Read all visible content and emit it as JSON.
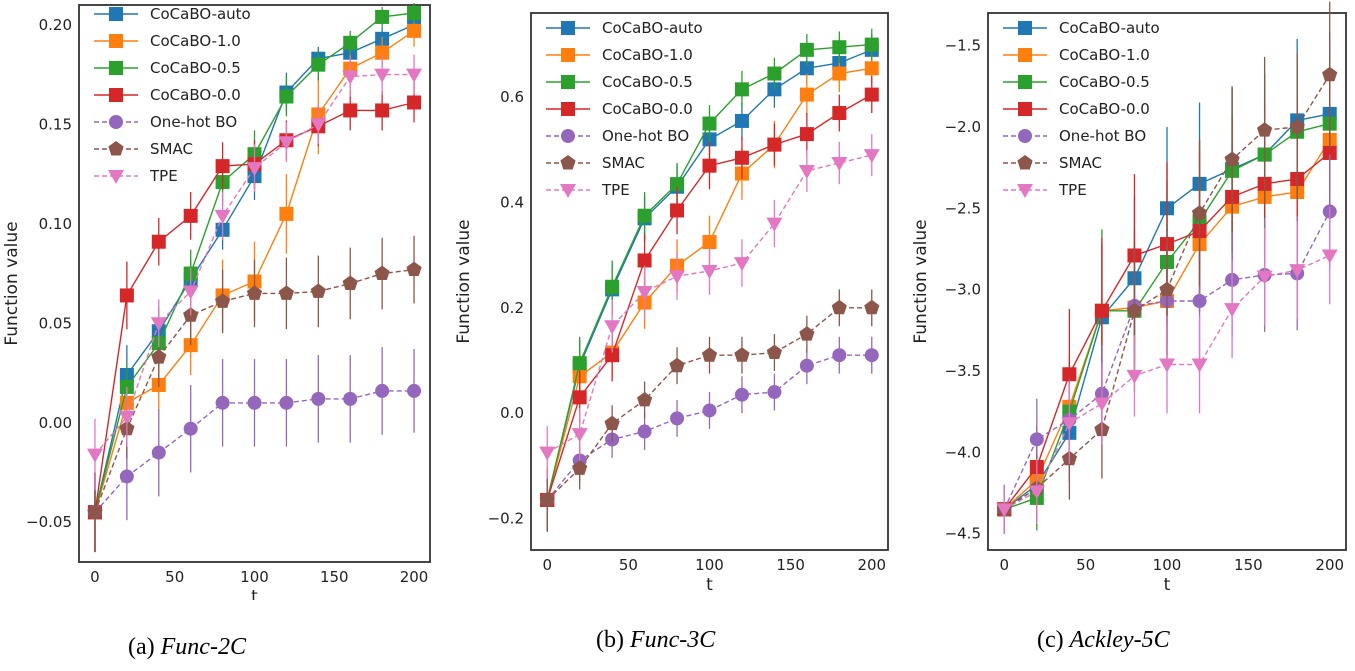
{
  "series_styles": [
    {
      "name": "CoCaBO-auto",
      "color": "#1f77b4",
      "marker": "square",
      "dash": false
    },
    {
      "name": "CoCaBO-1.0",
      "color": "#ff7f0e",
      "marker": "square",
      "dash": false
    },
    {
      "name": "CoCaBO-0.5",
      "color": "#2ca02c",
      "marker": "square",
      "dash": false
    },
    {
      "name": "CoCaBO-0.0",
      "color": "#d62728",
      "marker": "square",
      "dash": false
    },
    {
      "name": "One-hot BO",
      "color": "#9467bd",
      "marker": "circle",
      "dash": true
    },
    {
      "name": "SMAC",
      "color": "#8c564b",
      "marker": "pentagon",
      "dash": true
    },
    {
      "name": "TPE",
      "color": "#e377c2",
      "marker": "triangle-down",
      "dash": true
    }
  ],
  "chart_data": [
    {
      "type": "line",
      "caption_prefix": "(a) ",
      "caption_name": "Func-2C",
      "xlabel": "t",
      "ylabel": "Function value",
      "xlim": [
        -10,
        210
      ],
      "ylim": [
        -0.07,
        0.21
      ],
      "xticks": [
        0,
        50,
        100,
        150,
        200
      ],
      "yticks": [
        -0.05,
        0.0,
        0.05,
        0.1,
        0.15,
        0.2
      ],
      "ytick_labels": [
        "−0.05",
        "0.00",
        "0.05",
        "0.10",
        "0.15",
        "0.20"
      ],
      "x": [
        0,
        20,
        40,
        60,
        80,
        100,
        120,
        140,
        160,
        180,
        200
      ],
      "series": [
        {
          "name": "CoCaBO-auto",
          "values": [
            -0.045,
            0.024,
            0.046,
            0.072,
            0.097,
            0.124,
            0.166,
            0.183,
            0.186,
            0.193,
            0.2
          ],
          "err": [
            0.02,
            0.015,
            0.012,
            0.01,
            0.01,
            0.012,
            0.01,
            0.006,
            0.006,
            0.006,
            0.005
          ]
        },
        {
          "name": "CoCaBO-1.0",
          "values": [
            -0.045,
            0.01,
            0.019,
            0.039,
            0.064,
            0.071,
            0.105,
            0.155,
            0.178,
            0.186,
            0.197
          ],
          "err": [
            0.02,
            0.012,
            0.012,
            0.015,
            0.018,
            0.02,
            0.02,
            0.02,
            0.01,
            0.008,
            0.008
          ]
        },
        {
          "name": "CoCaBO-0.5",
          "values": [
            -0.045,
            0.018,
            0.04,
            0.075,
            0.121,
            0.135,
            0.164,
            0.18,
            0.191,
            0.204,
            0.206
          ],
          "err": [
            0.02,
            0.012,
            0.012,
            0.012,
            0.012,
            0.012,
            0.01,
            0.008,
            0.006,
            0.005,
            0.005
          ]
        },
        {
          "name": "CoCaBO-0.0",
          "values": [
            -0.045,
            0.064,
            0.091,
            0.104,
            0.129,
            0.13,
            0.142,
            0.149,
            0.157,
            0.157,
            0.161
          ],
          "err": [
            0.02,
            0.017,
            0.012,
            0.012,
            0.012,
            0.012,
            0.01,
            0.01,
            0.01,
            0.01,
            0.01
          ]
        },
        {
          "name": "One-hot BO",
          "values": [
            -0.045,
            -0.027,
            -0.015,
            -0.003,
            0.01,
            0.01,
            0.01,
            0.012,
            0.012,
            0.016,
            0.016
          ],
          "err": [
            0.02,
            0.022,
            0.022,
            0.022,
            0.022,
            0.022,
            0.022,
            0.022,
            0.022,
            0.022,
            0.021
          ]
        },
        {
          "name": "SMAC",
          "values": [
            -0.045,
            -0.003,
            0.033,
            0.054,
            0.061,
            0.065,
            0.065,
            0.066,
            0.07,
            0.075,
            0.077
          ],
          "err": [
            0.02,
            0.015,
            0.015,
            0.015,
            0.016,
            0.017,
            0.018,
            0.018,
            0.018,
            0.018,
            0.017
          ]
        },
        {
          "name": "TPE",
          "values": [
            -0.016,
            0.003,
            0.05,
            0.066,
            0.104,
            0.128,
            0.141,
            0.15,
            0.174,
            0.175,
            0.175
          ],
          "err": [
            0.018,
            0.015,
            0.012,
            0.012,
            0.012,
            0.012,
            0.01,
            0.01,
            0.01,
            0.01,
            0.01
          ]
        }
      ]
    },
    {
      "type": "line",
      "caption_prefix": "(b) ",
      "caption_name": "Func-3C",
      "xlabel": "t",
      "ylabel": "Function value",
      "xlim": [
        -10,
        210
      ],
      "ylim": [
        -0.26,
        0.76
      ],
      "xticks": [
        0,
        50,
        100,
        150,
        200
      ],
      "yticks": [
        -0.2,
        0.0,
        0.2,
        0.4,
        0.6
      ],
      "ytick_labels": [
        "−0.2",
        "0.0",
        "0.2",
        "0.4",
        "0.6"
      ],
      "x": [
        0,
        20,
        40,
        60,
        80,
        100,
        120,
        140,
        160,
        180,
        200
      ],
      "series": [
        {
          "name": "CoCaBO-auto",
          "values": [
            -0.165,
            0.09,
            0.235,
            0.37,
            0.43,
            0.52,
            0.555,
            0.615,
            0.655,
            0.665,
            0.69
          ],
          "err": [
            0.06,
            0.05,
            0.05,
            0.045,
            0.04,
            0.04,
            0.035,
            0.035,
            0.03,
            0.03,
            0.03
          ]
        },
        {
          "name": "CoCaBO-1.0",
          "values": [
            -0.165,
            0.07,
            0.115,
            0.21,
            0.28,
            0.325,
            0.455,
            0.51,
            0.605,
            0.645,
            0.655
          ],
          "err": [
            0.06,
            0.05,
            0.05,
            0.05,
            0.05,
            0.05,
            0.05,
            0.045,
            0.04,
            0.035,
            0.03
          ]
        },
        {
          "name": "CoCaBO-0.5",
          "values": [
            -0.165,
            0.095,
            0.24,
            0.375,
            0.435,
            0.55,
            0.615,
            0.645,
            0.69,
            0.695,
            0.7
          ],
          "err": [
            0.06,
            0.05,
            0.05,
            0.045,
            0.04,
            0.035,
            0.035,
            0.03,
            0.03,
            0.03,
            0.03
          ]
        },
        {
          "name": "CoCaBO-0.0",
          "values": [
            -0.165,
            0.03,
            0.11,
            0.29,
            0.385,
            0.47,
            0.485,
            0.51,
            0.53,
            0.57,
            0.605
          ],
          "err": [
            0.06,
            0.05,
            0.05,
            0.05,
            0.045,
            0.045,
            0.04,
            0.04,
            0.04,
            0.035,
            0.035
          ]
        },
        {
          "name": "One-hot BO",
          "values": [
            -0.165,
            -0.09,
            -0.05,
            -0.035,
            -0.01,
            0.005,
            0.035,
            0.04,
            0.09,
            0.11,
            0.11
          ],
          "err": [
            0.06,
            0.04,
            0.035,
            0.035,
            0.035,
            0.035,
            0.035,
            0.035,
            0.035,
            0.035,
            0.035
          ]
        },
        {
          "name": "SMAC",
          "values": [
            -0.165,
            -0.105,
            -0.02,
            0.025,
            0.09,
            0.11,
            0.11,
            0.115,
            0.15,
            0.2,
            0.2
          ],
          "err": [
            0.06,
            0.04,
            0.035,
            0.035,
            0.035,
            0.035,
            0.035,
            0.035,
            0.035,
            0.035,
            0.035
          ]
        },
        {
          "name": "TPE",
          "values": [
            -0.075,
            -0.04,
            0.165,
            0.23,
            0.26,
            0.27,
            0.285,
            0.36,
            0.46,
            0.475,
            0.49
          ],
          "err": [
            0.05,
            0.05,
            0.05,
            0.05,
            0.045,
            0.045,
            0.045,
            0.045,
            0.04,
            0.04,
            0.04
          ]
        }
      ]
    },
    {
      "type": "line",
      "caption_prefix": "(c) ",
      "caption_name": "Ackley-5C",
      "xlabel": "t",
      "ylabel": "Function value",
      "xlim": [
        -10,
        210
      ],
      "ylim": [
        -4.6,
        -1.3
      ],
      "xticks": [
        0,
        50,
        100,
        150,
        200
      ],
      "yticks": [
        -4.5,
        -4.0,
        -3.5,
        -3.0,
        -2.5,
        -2.0,
        -1.5
      ],
      "ytick_labels": [
        "−4.5",
        "−4.0",
        "−3.5",
        "−3.0",
        "−2.5",
        "−2.0",
        "−1.5"
      ],
      "x": [
        0,
        20,
        40,
        60,
        80,
        100,
        120,
        140,
        160,
        180,
        200
      ],
      "series": [
        {
          "name": "CoCaBO-auto",
          "values": [
            -4.35,
            -4.2,
            -3.88,
            -3.17,
            -2.93,
            -2.5,
            -2.35,
            -2.26,
            -2.17,
            -1.96,
            -1.92
          ],
          "err": [
            0.15,
            0.25,
            0.3,
            0.45,
            0.5,
            0.5,
            0.5,
            0.5,
            0.5,
            0.5,
            0.5
          ]
        },
        {
          "name": "CoCaBO-1.0",
          "values": [
            -4.35,
            -4.17,
            -3.72,
            -3.13,
            -3.11,
            -3.07,
            -2.72,
            -2.49,
            -2.43,
            -2.4,
            -2.08
          ],
          "err": [
            0.15,
            0.25,
            0.3,
            0.4,
            0.4,
            0.4,
            0.4,
            0.4,
            0.4,
            0.4,
            0.4
          ]
        },
        {
          "name": "CoCaBO-0.5",
          "values": [
            -4.35,
            -4.28,
            -3.75,
            -3.13,
            -3.13,
            -2.83,
            -2.58,
            -2.27,
            -2.17,
            -2.03,
            -1.98
          ],
          "err": [
            0.15,
            0.2,
            0.3,
            0.5,
            0.5,
            0.5,
            0.5,
            0.5,
            0.5,
            0.4,
            0.4
          ]
        },
        {
          "name": "CoCaBO-0.0",
          "values": [
            -4.35,
            -4.09,
            -3.52,
            -3.13,
            -2.79,
            -2.72,
            -2.64,
            -2.43,
            -2.35,
            -2.32,
            -2.16
          ],
          "err": [
            0.15,
            0.25,
            0.4,
            0.45,
            0.5,
            0.5,
            0.5,
            0.5,
            0.5,
            0.5,
            0.5
          ]
        },
        {
          "name": "One-hot BO",
          "values": [
            -4.35,
            -3.92,
            -3.8,
            -3.64,
            -3.1,
            -3.07,
            -3.07,
            -2.94,
            -2.91,
            -2.9,
            -2.52
          ],
          "err": [
            0.15,
            0.25,
            0.25,
            0.3,
            0.35,
            0.35,
            0.35,
            0.35,
            0.35,
            0.35,
            0.35
          ]
        },
        {
          "name": "SMAC",
          "values": [
            -4.35,
            -4.22,
            -4.04,
            -3.86,
            -3.13,
            -3.0,
            -2.53,
            -2.2,
            -2.02,
            -2.0,
            -1.68
          ],
          "err": [
            0.15,
            0.2,
            0.25,
            0.3,
            0.4,
            0.4,
            0.45,
            0.45,
            0.45,
            0.45,
            0.45
          ]
        },
        {
          "name": "TPE",
          "values": [
            -4.35,
            -4.24,
            -3.82,
            -3.7,
            -3.53,
            -3.46,
            -3.46,
            -3.12,
            -2.92,
            -2.88,
            -2.79
          ],
          "err": [
            0.15,
            0.2,
            0.25,
            0.25,
            0.25,
            0.3,
            0.3,
            0.3,
            0.3,
            0.3,
            0.3
          ]
        }
      ]
    }
  ]
}
